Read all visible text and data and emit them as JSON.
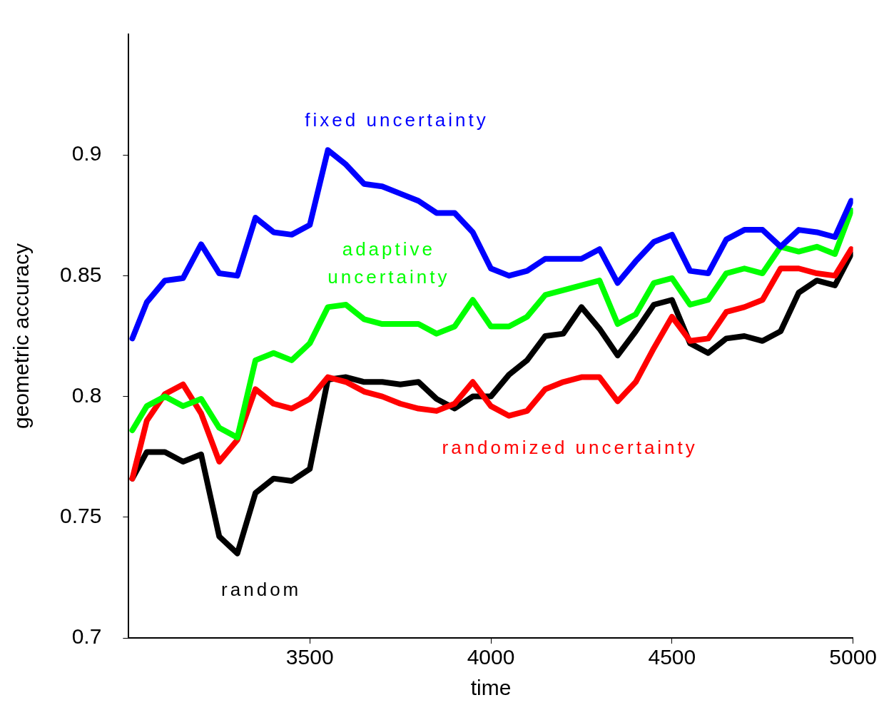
{
  "chart_data": {
    "type": "line",
    "xlabel": "time",
    "ylabel": "geometric accuracy",
    "xlim": [
      3000,
      5000
    ],
    "xticks": [
      3500,
      4000,
      4500,
      5000
    ],
    "ylim": [
      0.7,
      0.95
    ],
    "yticks": [
      0.7,
      0.75,
      0.8,
      0.85,
      0.9
    ],
    "grid": false,
    "legend": false,
    "marker": "none",
    "line_style": "solid",
    "x": [
      3010,
      3050,
      3100,
      3150,
      3200,
      3250,
      3300,
      3350,
      3400,
      3450,
      3500,
      3550,
      3600,
      3650,
      3700,
      3750,
      3800,
      3850,
      3900,
      3950,
      4000,
      4050,
      4100,
      4150,
      4200,
      4250,
      4300,
      4350,
      4400,
      4450,
      4500,
      4550,
      4600,
      4650,
      4700,
      4750,
      4800,
      4850,
      4900,
      4950,
      4995
    ],
    "series": [
      {
        "name": "fixed uncertainty",
        "color": "#0000ff",
        "values": [
          0.824,
          0.839,
          0.848,
          0.849,
          0.863,
          0.851,
          0.85,
          0.874,
          0.868,
          0.867,
          0.871,
          0.902,
          0.896,
          0.888,
          0.887,
          0.884,
          0.881,
          0.876,
          0.876,
          0.868,
          0.853,
          0.85,
          0.852,
          0.857,
          0.857,
          0.857,
          0.861,
          0.847,
          0.856,
          0.864,
          0.867,
          0.852,
          0.851,
          0.865,
          0.869,
          0.869,
          0.862,
          0.869,
          0.868,
          0.866,
          0.881
        ]
      },
      {
        "name": "adaptive uncertainty",
        "color": "#00ff00",
        "values": [
          0.786,
          0.796,
          0.8,
          0.796,
          0.799,
          0.787,
          0.783,
          0.815,
          0.818,
          0.815,
          0.822,
          0.837,
          0.838,
          0.832,
          0.83,
          0.83,
          0.83,
          0.826,
          0.829,
          0.84,
          0.829,
          0.829,
          0.833,
          0.842,
          0.844,
          0.846,
          0.848,
          0.83,
          0.834,
          0.847,
          0.849,
          0.838,
          0.84,
          0.851,
          0.853,
          0.851,
          0.862,
          0.86,
          0.862,
          0.859,
          0.877
        ]
      },
      {
        "name": "randomized uncertainty",
        "color": "#ff0000",
        "values": [
          0.766,
          0.79,
          0.801,
          0.805,
          0.793,
          0.773,
          0.782,
          0.803,
          0.797,
          0.795,
          0.799,
          0.808,
          0.806,
          0.802,
          0.8,
          0.797,
          0.795,
          0.794,
          0.797,
          0.806,
          0.796,
          0.792,
          0.794,
          0.803,
          0.806,
          0.808,
          0.808,
          0.798,
          0.806,
          0.82,
          0.833,
          0.823,
          0.824,
          0.835,
          0.837,
          0.84,
          0.853,
          0.853,
          0.851,
          0.85,
          0.861
        ]
      },
      {
        "name": "random",
        "color": "#000000",
        "values": [
          0.766,
          0.777,
          0.777,
          0.773,
          0.776,
          0.742,
          0.735,
          0.76,
          0.766,
          0.765,
          0.77,
          0.807,
          0.808,
          0.806,
          0.806,
          0.805,
          0.806,
          0.799,
          0.795,
          0.8,
          0.8,
          0.809,
          0.815,
          0.825,
          0.826,
          0.837,
          0.828,
          0.817,
          0.827,
          0.838,
          0.84,
          0.822,
          0.818,
          0.824,
          0.825,
          0.823,
          0.827,
          0.843,
          0.848,
          0.846,
          0.859
        ]
      }
    ]
  }
}
